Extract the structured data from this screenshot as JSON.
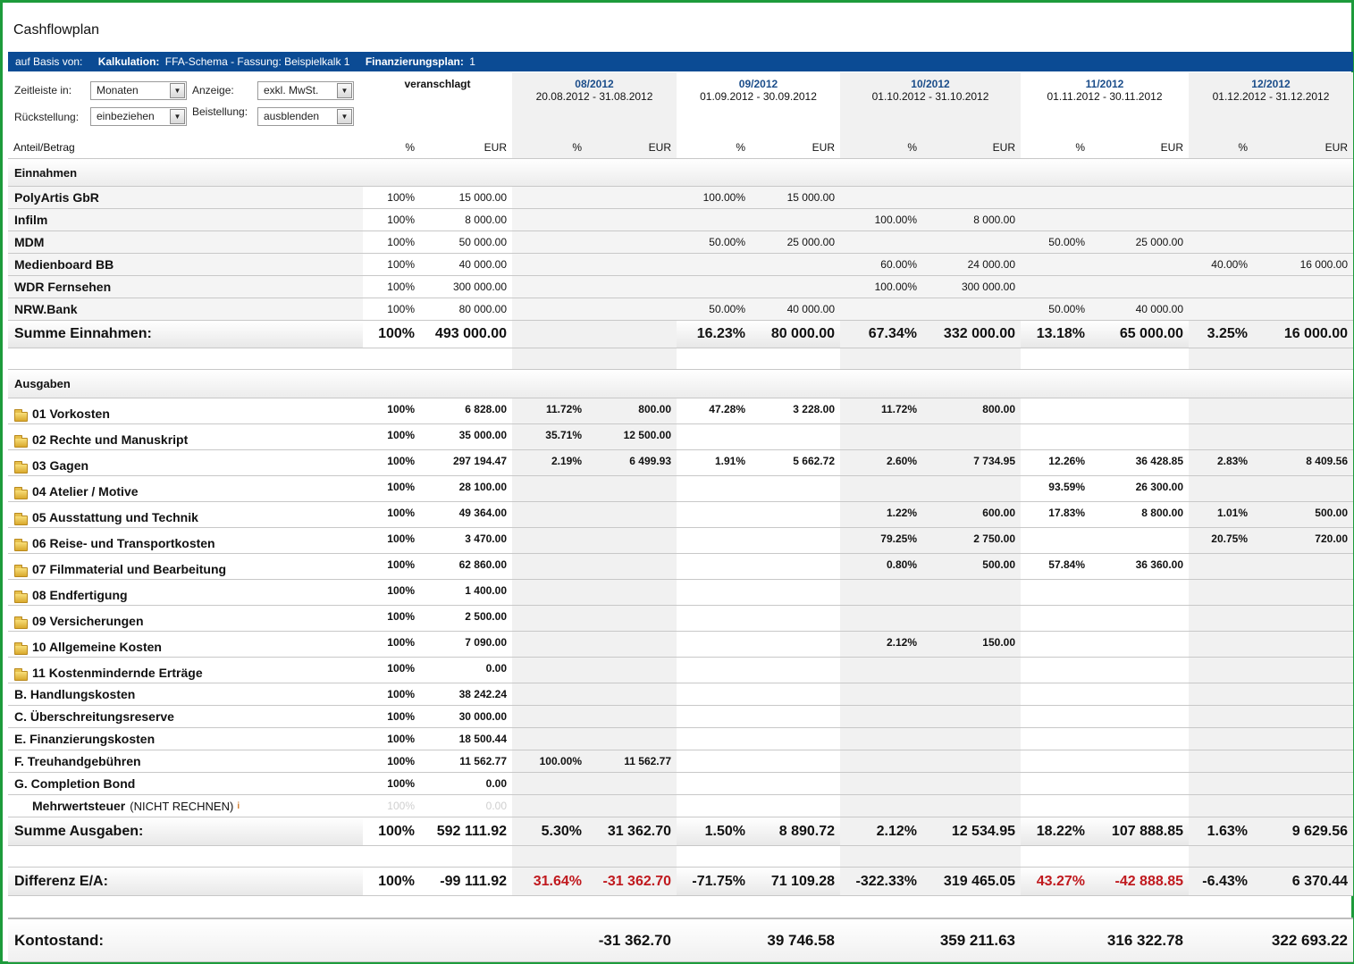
{
  "title": "Cashflowplan",
  "basis": {
    "prefix": "auf Basis von:",
    "kalk_label": "Kalkulation:",
    "kalk_value": "FFA-Schema - Fassung: Beispielkalk 1",
    "fin_label": "Finanzierungsplan:",
    "fin_value": "1"
  },
  "controls": {
    "zeitleiste_label": "Zeitleiste in:",
    "zeitleiste_value": "Monaten",
    "anzeige_label": "Anzeige:",
    "anzeige_value": "exkl. MwSt.",
    "rueck_label": "Rückstellung:",
    "rueck_value": "einbeziehen",
    "bestell_label": "Beistellung:",
    "bestell_value": "ausblenden"
  },
  "header": {
    "veranschlagt": "veranschlagt",
    "anteil": "Anteil/Betrag",
    "pct": "%",
    "eur": "EUR",
    "months": [
      {
        "m": "08/2012",
        "r": "20.08.2012 - 31.08.2012"
      },
      {
        "m": "09/2012",
        "r": "01.09.2012 - 30.09.2012"
      },
      {
        "m": "10/2012",
        "r": "01.10.2012 - 31.10.2012"
      },
      {
        "m": "11/2012",
        "r": "01.11.2012 - 30.11.2012"
      },
      {
        "m": "12/2012",
        "r": "01.12.2012 - 31.12.2012"
      }
    ]
  },
  "sections": {
    "einnahmen": "Einnahmen",
    "ausgaben": "Ausgaben"
  },
  "income_rows": [
    {
      "label": "PolyArtis GbR",
      "v": [
        "100%",
        "15 000.00",
        "",
        "",
        "100.00%",
        "15 000.00",
        "",
        "",
        "",
        "",
        "",
        ""
      ]
    },
    {
      "label": "Infilm",
      "v": [
        "100%",
        "8 000.00",
        "",
        "",
        "",
        "",
        "100.00%",
        "8 000.00",
        "",
        "",
        "",
        ""
      ]
    },
    {
      "label": "MDM",
      "v": [
        "100%",
        "50 000.00",
        "",
        "",
        "50.00%",
        "25 000.00",
        "",
        "",
        "50.00%",
        "25 000.00",
        "",
        ""
      ]
    },
    {
      "label": "Medienboard BB",
      "v": [
        "100%",
        "40 000.00",
        "",
        "",
        "",
        "",
        "60.00%",
        "24 000.00",
        "",
        "",
        "40.00%",
        "16 000.00"
      ]
    },
    {
      "label": "WDR Fernsehen",
      "v": [
        "100%",
        "300 000.00",
        "",
        "",
        "",
        "",
        "100.00%",
        "300 000.00",
        "",
        "",
        "",
        ""
      ]
    },
    {
      "label": "NRW.Bank",
      "v": [
        "100%",
        "80 000.00",
        "",
        "",
        "50.00%",
        "40 000.00",
        "",
        "",
        "50.00%",
        "40 000.00",
        "",
        ""
      ]
    }
  ],
  "income_sum": {
    "label": "Summe Einnahmen:",
    "v": [
      "100%",
      "493 000.00",
      "",
      "",
      "16.23%",
      "80 000.00",
      "67.34%",
      "332 000.00",
      "13.18%",
      "65 000.00",
      "3.25%",
      "16 000.00"
    ]
  },
  "expense_rows": [
    {
      "label": "01 Vorkosten",
      "folder": true,
      "v": [
        "100%",
        "6 828.00",
        "11.72%",
        "800.00",
        "47.28%",
        "3 228.00",
        "11.72%",
        "800.00",
        "",
        "",
        "",
        ""
      ]
    },
    {
      "label": "02 Rechte und Manuskript",
      "folder": true,
      "v": [
        "100%",
        "35 000.00",
        "35.71%",
        "12 500.00",
        "",
        "",
        "",
        "",
        "",
        "",
        "",
        ""
      ]
    },
    {
      "label": "03 Gagen",
      "folder": true,
      "v": [
        "100%",
        "297 194.47",
        "2.19%",
        "6 499.93",
        "1.91%",
        "5 662.72",
        "2.60%",
        "7 734.95",
        "12.26%",
        "36 428.85",
        "2.83%",
        "8 409.56"
      ]
    },
    {
      "label": "04 Atelier / Motive",
      "folder": true,
      "v": [
        "100%",
        "28 100.00",
        "",
        "",
        "",
        "",
        "",
        "",
        "93.59%",
        "26 300.00",
        "",
        ""
      ]
    },
    {
      "label": "05 Ausstattung und Technik",
      "folder": true,
      "v": [
        "100%",
        "49 364.00",
        "",
        "",
        "",
        "",
        "1.22%",
        "600.00",
        "17.83%",
        "8 800.00",
        "1.01%",
        "500.00"
      ]
    },
    {
      "label": "06 Reise- und Transportkosten",
      "folder": true,
      "v": [
        "100%",
        "3 470.00",
        "",
        "",
        "",
        "",
        "79.25%",
        "2 750.00",
        "",
        "",
        "20.75%",
        "720.00"
      ]
    },
    {
      "label": "07 Filmmaterial und Bearbeitung",
      "folder": true,
      "v": [
        "100%",
        "62 860.00",
        "",
        "",
        "",
        "",
        "0.80%",
        "500.00",
        "57.84%",
        "36 360.00",
        "",
        ""
      ]
    },
    {
      "label": "08 Endfertigung",
      "folder": true,
      "v": [
        "100%",
        "1 400.00",
        "",
        "",
        "",
        "",
        "",
        "",
        "",
        "",
        "",
        ""
      ]
    },
    {
      "label": "09 Versicherungen",
      "folder": true,
      "v": [
        "100%",
        "2 500.00",
        "",
        "",
        "",
        "",
        "",
        "",
        "",
        "",
        "",
        ""
      ]
    },
    {
      "label": "10 Allgemeine Kosten",
      "folder": true,
      "v": [
        "100%",
        "7 090.00",
        "",
        "",
        "",
        "",
        "2.12%",
        "150.00",
        "",
        "",
        "",
        ""
      ]
    },
    {
      "label": "11 Kostenmindernde Erträge",
      "folder": true,
      "v": [
        "100%",
        "0.00",
        "",
        "",
        "",
        "",
        "",
        "",
        "",
        "",
        "",
        ""
      ]
    },
    {
      "label": "B. Handlungskosten",
      "folder": false,
      "v": [
        "100%",
        "38 242.24",
        "",
        "",
        "",
        "",
        "",
        "",
        "",
        "",
        "",
        ""
      ]
    },
    {
      "label": "C. Überschreitungsreserve",
      "folder": false,
      "v": [
        "100%",
        "30 000.00",
        "",
        "",
        "",
        "",
        "",
        "",
        "",
        "",
        "",
        ""
      ]
    },
    {
      "label": "E. Finanzierungskosten",
      "folder": false,
      "v": [
        "100%",
        "18 500.44",
        "",
        "",
        "",
        "",
        "",
        "",
        "",
        "",
        "",
        ""
      ]
    },
    {
      "label": "F. Treuhandgebühren",
      "folder": false,
      "v": [
        "100%",
        "11 562.77",
        "100.00%",
        "11 562.77",
        "",
        "",
        "",
        "",
        "",
        "",
        "",
        ""
      ]
    },
    {
      "label": "G. Completion Bond",
      "folder": false,
      "v": [
        "100%",
        "0.00",
        "",
        "",
        "",
        "",
        "",
        "",
        "",
        "",
        "",
        ""
      ]
    }
  ],
  "mwst": {
    "label": "Mehrwertsteuer",
    "note": "(NICHT RECHNEN)",
    "info": "i",
    "v": [
      "100%",
      "0.00"
    ]
  },
  "expense_sum": {
    "label": "Summe Ausgaben:",
    "v": [
      "100%",
      "592 111.92",
      "5.30%",
      "31 362.70",
      "1.50%",
      "8 890.72",
      "2.12%",
      "12 534.95",
      "18.22%",
      "107 888.85",
      "1.63%",
      "9 629.56"
    ]
  },
  "diff": {
    "label": "Differenz E/A:",
    "v": [
      "100%",
      "-99 111.92",
      "31.64%",
      "-31 362.70",
      "-71.75%",
      "71 109.28",
      "-322.33%",
      "319 465.05",
      "43.27%",
      "-42 888.85",
      "-6.43%",
      "6 370.44"
    ],
    "red": [
      2,
      3,
      8,
      9
    ]
  },
  "konto": {
    "label": "Kontostand:",
    "v": [
      "",
      "",
      "",
      "-31 362.70",
      "",
      "39 746.58",
      "",
      "359 211.63",
      "",
      "316 322.78",
      "",
      "322 693.22"
    ]
  },
  "colors": {
    "accent": "#0b4b94",
    "month": "#1b4d8a",
    "negative": "#c0191e",
    "frame": "#1d9b3b"
  }
}
